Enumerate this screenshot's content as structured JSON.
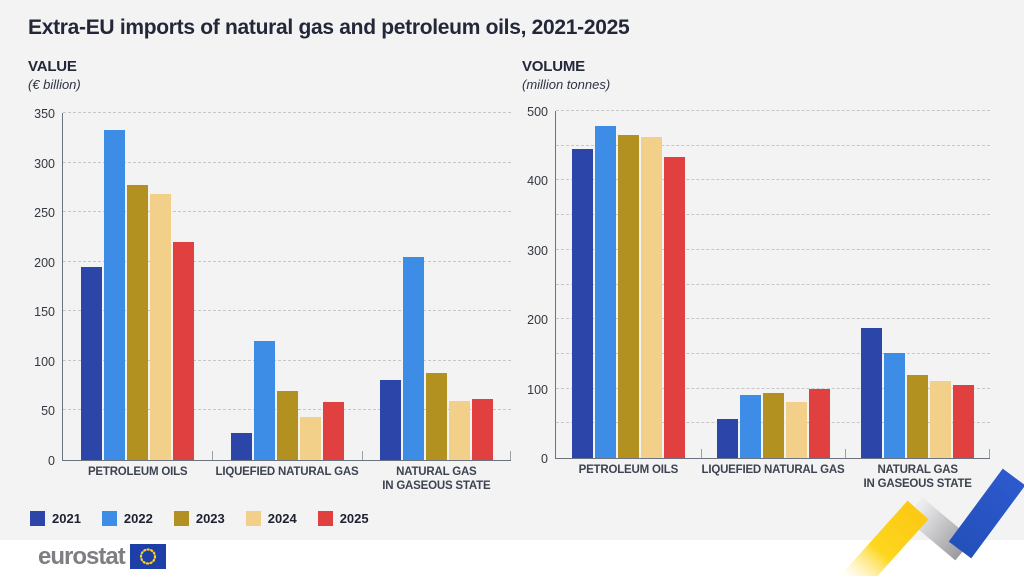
{
  "title": "Extra-EU imports of natural gas and petroleum oils, 2021-2025",
  "legend": {
    "years": [
      "2021",
      "2022",
      "2023",
      "2024",
      "2025"
    ]
  },
  "colors": {
    "2021": "#2b45a8",
    "2022": "#3d8ce6",
    "2023": "#b29120",
    "2024": "#f2d089",
    "2025": "#e04040",
    "background": "#f3f3f4",
    "footer_background": "#ffffff",
    "title_text": "#232839",
    "axis_line": "#6b7280",
    "gridline": "#c7c7c9",
    "ribbon_yellow": "#fed61e",
    "ribbon_gray": "#b9b9bd",
    "ribbon_blue": "#2c55c5",
    "eu_flag_blue": "#1e3fa8",
    "eu_flag_stars": "#fcd116"
  },
  "footer": {
    "logo_text": "eurostat"
  },
  "chart_data": [
    {
      "type": "bar",
      "title": "VALUE",
      "subtitle": "(€ billion)",
      "xlabel": "",
      "ylabel": "€ billion",
      "categories": [
        "PETROLEUM OILS",
        "LIQUEFIED NATURAL GAS",
        "NATURAL GAS\nIN GASEOUS STATE"
      ],
      "series": [
        {
          "name": "2021",
          "color": "#2b45a8",
          "values": [
            195,
            27,
            81
          ]
        },
        {
          "name": "2022",
          "color": "#3d8ce6",
          "values": [
            333,
            120,
            205
          ]
        },
        {
          "name": "2023",
          "color": "#b29120",
          "values": [
            277,
            70,
            88
          ]
        },
        {
          "name": "2024",
          "color": "#f2d089",
          "values": [
            268,
            43,
            60
          ]
        },
        {
          "name": "2025",
          "color": "#e04040",
          "values": [
            220,
            59,
            62
          ]
        }
      ],
      "ylim": [
        0,
        350
      ],
      "gridline_step": 50,
      "ylabel_step": 50,
      "grid": true,
      "legend_position": "bottom-left"
    },
    {
      "type": "bar",
      "title": "VOLUME",
      "subtitle": "(million tonnes)",
      "xlabel": "",
      "ylabel": "million tonnes",
      "categories": [
        "PETROLEUM OILS",
        "LIQUEFIED NATURAL GAS",
        "NATURAL GAS\nIN GASEOUS STATE"
      ],
      "series": [
        {
          "name": "2021",
          "color": "#2b45a8",
          "values": [
            445,
            56,
            187
          ]
        },
        {
          "name": "2022",
          "color": "#3d8ce6",
          "values": [
            479,
            91,
            151
          ]
        },
        {
          "name": "2023",
          "color": "#b29120",
          "values": [
            466,
            94,
            119
          ]
        },
        {
          "name": "2024",
          "color": "#f2d089",
          "values": [
            462,
            81,
            111
          ]
        },
        {
          "name": "2025",
          "color": "#e04040",
          "values": [
            434,
            100,
            105
          ]
        }
      ],
      "ylim": [
        0,
        500
      ],
      "gridline_step": 50,
      "ylabel_step": 100,
      "grid": true,
      "legend_position": "bottom-left"
    }
  ]
}
